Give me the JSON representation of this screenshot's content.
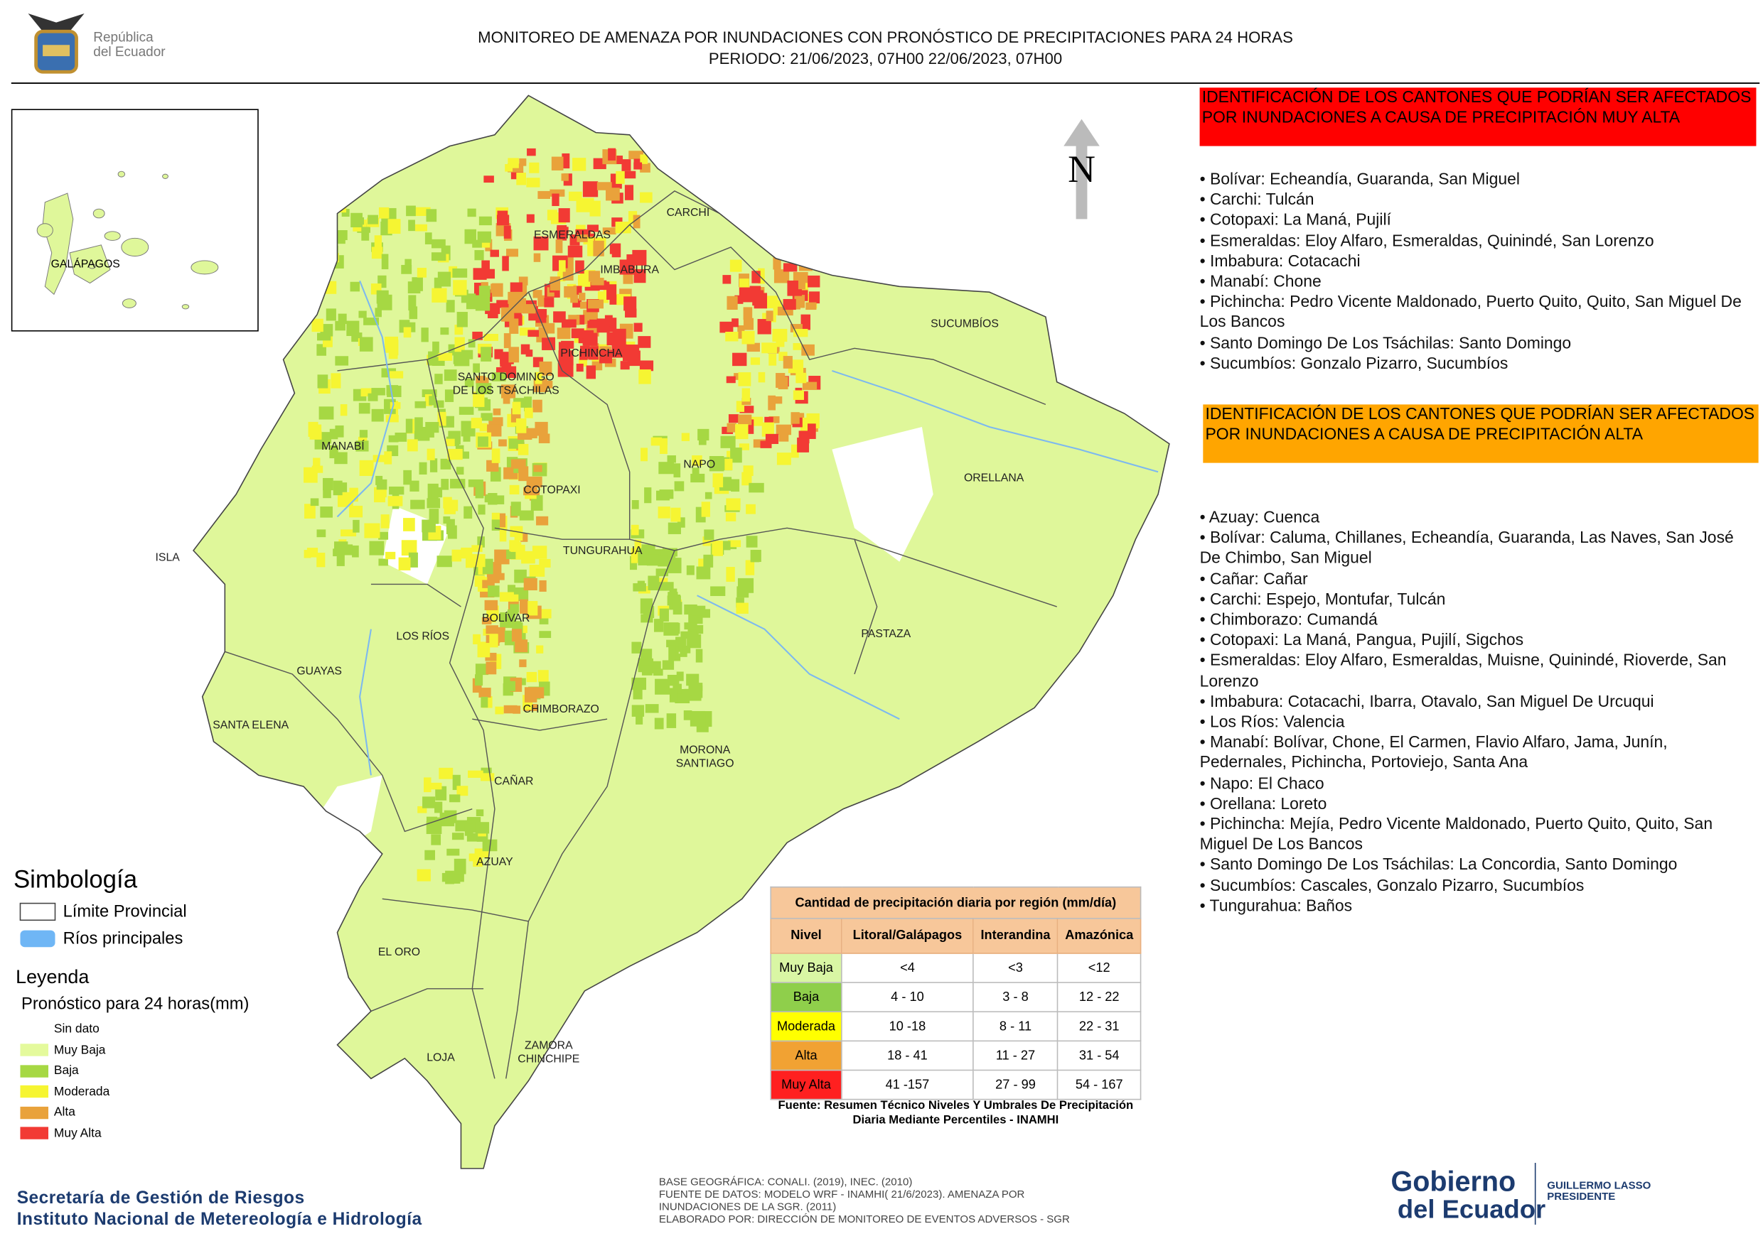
{
  "header": {
    "logo": [
      "República",
      "del Ecuador"
    ],
    "title": "MONITOREO DE AMENAZA POR INUNDACIONES  CON PRONÓSTICO DE  PRECIPITACIONES PARA 24 HORAS",
    "period": "PERIODO: 21/06/2023, 07H00 22/06/2023, 07H00"
  },
  "map": {
    "north": "N",
    "inset_label": "GALÁPAGOS",
    "labels": [
      "ESMERALDAS",
      "CARCHI",
      "IMBABURA",
      "SUCUMBÍOS",
      "PICHINCHA",
      "SANTO DOMINGO DE LOS TSÁCHILAS",
      "MANABÍ",
      "NAPO",
      "ORELLANA",
      "COTOPAXI",
      "TUNGURAHUA",
      "ISLA",
      "BOLÍVAR",
      "LOS RÍOS",
      "GUAYAS",
      "PASTAZA",
      "CHIMBORAZO",
      "SANTA ELENA",
      "MORONA SANTIAGO",
      "CAÑAR",
      "AZUAY",
      "EL ORO",
      "LOJA",
      "ZAMORA CHINCHIPE"
    ]
  },
  "very_high": {
    "heading": "IDENTIFICACIÓN DE LOS CANTONES QUE PODRÍAN SER AFECTADOS POR INUNDACIONES  A CAUSA DE PRECIPITACIÓN MUY ALTA",
    "items": [
      "• Bolívar: Echeandía, Guaranda, San Miguel",
      "• Carchi: Tulcán",
      "• Cotopaxi: La Maná, Pujilí",
      "• Esmeraldas: Eloy Alfaro, Esmeraldas, Quinindé, San Lorenzo",
      "• Imbabura: Cotacachi",
      "• Manabí: Chone",
      "• Pichincha: Pedro Vicente Maldonado, Puerto Quito, Quito, San Miguel De Los Bancos",
      "• Santo Domingo De Los Tsáchilas: Santo Domingo",
      "• Sucumbíos: Gonzalo Pizarro, Sucumbíos"
    ]
  },
  "high": {
    "heading": "IDENTIFICACIÓN DE LOS CANTONES QUE  PODRÍAN SER AFECTADOS POR INUNDACIONES  A CAUSA DE PRECIPITACIÓN ALTA",
    "items": [
      "• Azuay: Cuenca",
      "• Bolívar: Caluma, Chillanes, Echeandía, Guaranda, Las Naves, San José De Chimbo, San Miguel",
      "• Cañar: Cañar",
      "• Carchi: Espejo, Montufar, Tulcán",
      "• Chimborazo: Cumandá",
      "• Cotopaxi: La Maná, Pangua, Pujilí, Sigchos",
      "• Esmeraldas: Eloy Alfaro, Esmeraldas, Muisne, Quinindé, Rioverde, San Lorenzo",
      "• Imbabura: Cotacachi, Ibarra, Otavalo, San Miguel De Urcuqui",
      "• Los Ríos: Valencia",
      "• Manabí: Bolívar, Chone, El Carmen, Flavio Alfaro, Jama, Junín, Pedernales, Pichincha, Portoviejo, Santa Ana",
      "• Napo: El Chaco",
      "• Orellana: Loreto",
      "• Pichincha: Mejía, Pedro Vicente Maldonado, Puerto Quito, Quito, San Miguel De Los Bancos",
      "• Santo Domingo De Los Tsáchilas: La Concordia, Santo Domingo",
      "• Sucumbíos: Cascales, Gonzalo Pizarro, Sucumbíos",
      "• Tungurahua: Baños"
    ]
  },
  "legend": {
    "symbology": "Simbología",
    "boundary": "Límite Provincial",
    "rivers": "Ríos principales",
    "title": "Leyenda",
    "subtitle": "Pronóstico para 24 horas(mm)",
    "items": [
      {
        "label": "Sin dato",
        "color": "#ffffff"
      },
      {
        "label": "Muy Baja",
        "color": "#e4fa9c"
      },
      {
        "label": "Baja",
        "color": "#a6d843"
      },
      {
        "label": "Moderada",
        "color": "#f6f532"
      },
      {
        "label": "Alta",
        "color": "#e9a23b"
      },
      {
        "label": "Muy Alta",
        "color": "#f23a34"
      }
    ]
  },
  "table": {
    "title": "Cantidad de precipitación diaria por región (mm/día)",
    "header": [
      "Nivel",
      "Litoral/Galápagos",
      "Interandina",
      "Amazónica"
    ],
    "rows": [
      {
        "color": "#d9f6a4",
        "cells": [
          "Muy Baja",
          "<4",
          "<3",
          "<12"
        ]
      },
      {
        "color": "#8fcf4b",
        "cells": [
          "Baja",
          "4 - 10",
          "3 - 8",
          "12 - 22"
        ]
      },
      {
        "color": "#ffff00",
        "cells": [
          "Moderada",
          "10 -18",
          "8 - 11",
          "22 - 31"
        ]
      },
      {
        "color": "#f1a233",
        "cells": [
          "Alta",
          "18 - 41",
          "11 - 27",
          "31 - 54"
        ]
      },
      {
        "color": "#ff2020",
        "cells": [
          "Muy Alta",
          "41 -157",
          "27 - 99",
          "54 - 167"
        ]
      }
    ],
    "source": "Fuente: Resumen Técnico Niveles Y Umbrales De Precipitación Diaria Mediante Percentiles - INAMHI"
  },
  "footer": {
    "institutions": [
      "Secretaría de Gestión de Riesgos",
      "Instituto Nacional de Metereología e Hidrología"
    ],
    "credits": [
      "BASE GEOGRÁFICA: CONALI. (2019), INEC. (2010)",
      "FUENTE DE DATOS: MODELO WRF - INAMHI( 21/6/2023).  AMENAZA POR INUNDACIONES DE LA SGR. (2011)",
      "ELABORADO POR: DIRECCIÓN DE MONITOREO DE EVENTOS ADVERSOS - SGR"
    ],
    "gov": [
      "Gobierno",
      "del Ecuador"
    ],
    "president": [
      "GUILLERMO LASSO",
      "PRESIDENTE"
    ]
  }
}
